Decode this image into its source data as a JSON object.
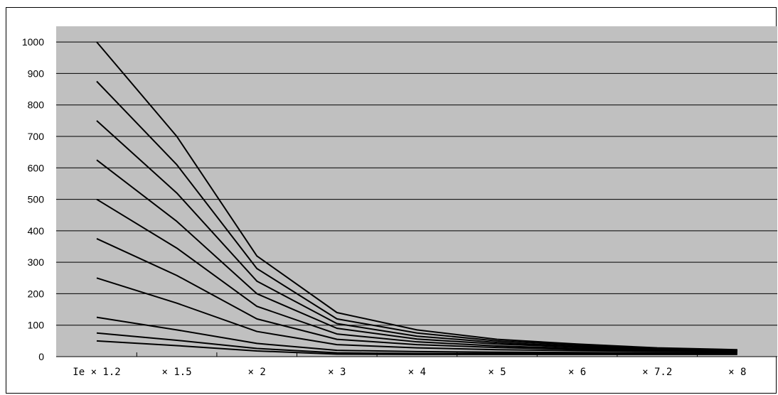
{
  "chart_data": {
    "type": "line",
    "title": "",
    "xlabel": "",
    "ylabel": "",
    "categories": [
      "Ie × 1.2",
      "× 1.5",
      "× 2",
      "× 3",
      "× 4",
      "× 5",
      "× 6",
      "× 7.2",
      "× 8"
    ],
    "yticks": [
      "0",
      "100",
      "200",
      "300",
      "400",
      "500",
      "600",
      "700",
      "800",
      "900",
      "1000"
    ],
    "ylim": [
      0,
      1050
    ],
    "grid": true,
    "legend": "none",
    "colors": {
      "plot_background": "#c0c0c0",
      "line": "#000000",
      "grid": "#000000"
    },
    "series": [
      {
        "values": [
          1000,
          700,
          320,
          140,
          85,
          55,
          40,
          28,
          22
        ]
      },
      {
        "values": [
          875,
          610,
          280,
          120,
          75,
          50,
          37,
          27,
          21
        ]
      },
      {
        "values": [
          750,
          520,
          240,
          105,
          65,
          45,
          33,
          25,
          20
        ]
      },
      {
        "values": [
          625,
          430,
          200,
          90,
          56,
          40,
          30,
          23,
          19
        ]
      },
      {
        "values": [
          500,
          345,
          160,
          72,
          47,
          34,
          26,
          21,
          18
        ]
      },
      {
        "values": [
          375,
          258,
          120,
          55,
          38,
          29,
          23,
          19,
          17
        ]
      },
      {
        "values": [
          250,
          170,
          80,
          38,
          28,
          22,
          19,
          17,
          15
        ]
      },
      {
        "values": [
          125,
          85,
          42,
          20,
          16,
          14,
          13,
          12,
          12
        ]
      },
      {
        "values": [
          75,
          52,
          26,
          12,
          10,
          10,
          10,
          10,
          10
        ]
      },
      {
        "values": [
          50,
          35,
          18,
          8,
          7,
          7,
          7,
          7,
          7
        ]
      }
    ]
  }
}
